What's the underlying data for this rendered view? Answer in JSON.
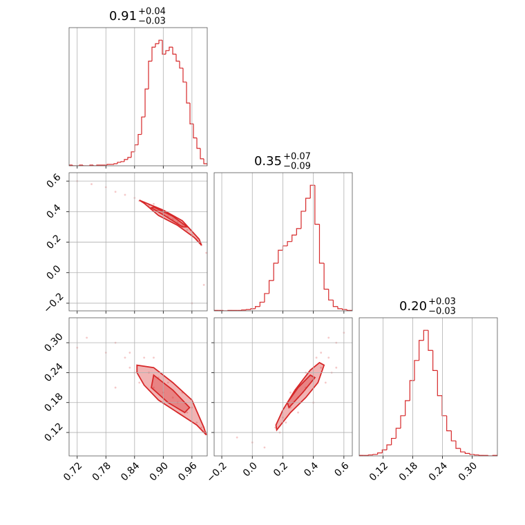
{
  "chart_data": [
    {
      "type": "histogram",
      "row": 0,
      "col": 0,
      "color": "#d62728",
      "title": "0.91",
      "title_upper": "+0.04",
      "title_lower": "−0.03",
      "xlim": [
        0.703,
        0.992
      ],
      "ylim": [
        0,
        198
      ],
      "xticks": [
        0.72,
        0.78,
        0.84,
        0.9,
        0.96
      ],
      "bins": [
        0.703,
        0.7102,
        0.7175,
        0.7247,
        0.7319,
        0.7391,
        0.7464,
        0.7536,
        0.7608,
        0.768,
        0.7753,
        0.7825,
        0.7897,
        0.7969,
        0.8042,
        0.8114,
        0.8186,
        0.8258,
        0.8331,
        0.8403,
        0.8475,
        0.8547,
        0.862,
        0.8692,
        0.8764,
        0.8836,
        0.8909,
        0.8981,
        0.9053,
        0.9125,
        0.9198,
        0.927,
        0.9342,
        0.9414,
        0.9487,
        0.9559,
        0.9631,
        0.9703,
        0.9776,
        0.9848,
        0.992
      ],
      "values": [
        1,
        0,
        0,
        1,
        0,
        0,
        1,
        0,
        1,
        1,
        1,
        2,
        2,
        3,
        5,
        6,
        9,
        12,
        20,
        30,
        45,
        70,
        110,
        150,
        170,
        175,
        180,
        160,
        165,
        170,
        160,
        150,
        140,
        120,
        90,
        60,
        40,
        25,
        10,
        3
      ]
    },
    {
      "type": "scatter",
      "row": 1,
      "col": 0,
      "color": "#d62728",
      "xlim": [
        0.703,
        0.992
      ],
      "ylim": [
        -0.25,
        0.655
      ],
      "xticks": [
        0.72,
        0.78,
        0.84,
        0.9,
        0.96
      ],
      "yticks": [
        {
          "value": -0.2,
          "label": "−0.2"
        },
        {
          "value": 0,
          "label": "0.0"
        },
        0.2,
        0.4,
        0.6
      ],
      "x": [
        0.72,
        0.75,
        0.78,
        0.8,
        0.82,
        0.84,
        0.85,
        0.86,
        0.87,
        0.88,
        0.89,
        0.9,
        0.91,
        0.92,
        0.93,
        0.94,
        0.95,
        0.96,
        0.97,
        0.98,
        0.99,
        0.985,
        0.96,
        0.88,
        0.92
      ],
      "y": [
        0.6,
        0.58,
        0.56,
        0.53,
        0.51,
        0.49,
        0.47,
        0.46,
        0.44,
        0.43,
        0.41,
        0.39,
        0.37,
        0.35,
        0.33,
        0.31,
        0.28,
        0.25,
        0.22,
        0.18,
        0.13,
        -0.08,
        -0.2,
        0.45,
        0.37
      ],
      "contours": [
        {
          "x": [
            0.85,
            0.9,
            0.94,
            0.975,
            0.98,
            0.965,
            0.93,
            0.89,
            0.86
          ],
          "y": [
            0.475,
            0.41,
            0.34,
            0.22,
            0.18,
            0.23,
            0.31,
            0.375,
            0.455
          ]
        },
        {
          "x": [
            0.88,
            0.92,
            0.95,
            0.94,
            0.905,
            0.875
          ],
          "y": [
            0.43,
            0.37,
            0.3,
            0.3,
            0.37,
            0.425
          ]
        }
      ]
    },
    {
      "type": "histogram",
      "row": 1,
      "col": 1,
      "color": "#d62728",
      "title": "0.35",
      "title_upper": "+0.07",
      "title_lower": "−0.09",
      "xlim": [
        -0.25,
        0.655
      ],
      "ylim": [
        0,
        319
      ],
      "xticks": [
        -0.2,
        0,
        0.2,
        0.4,
        0.6
      ],
      "bins": [
        -0.25,
        -0.22,
        -0.19,
        -0.16,
        -0.13,
        -0.1,
        -0.07,
        -0.04,
        -0.01,
        0.02,
        0.05,
        0.08,
        0.11,
        0.14,
        0.17,
        0.2,
        0.23,
        0.26,
        0.29,
        0.32,
        0.35,
        0.38,
        0.41,
        0.44,
        0.47,
        0.5,
        0.53,
        0.56,
        0.59,
        0.62,
        0.65
      ],
      "values": [
        1,
        1,
        0,
        1,
        1,
        1,
        2,
        3,
        5,
        10,
        20,
        40,
        70,
        110,
        140,
        150,
        160,
        175,
        190,
        230,
        260,
        290,
        200,
        110,
        50,
        25,
        10,
        5,
        3,
        1
      ]
    },
    {
      "type": "scatter",
      "row": 2,
      "col": 0,
      "color": "#d62728",
      "xlim": [
        0.703,
        0.992
      ],
      "ylim": [
        0.073,
        0.35
      ],
      "xticks": [
        0.72,
        0.78,
        0.84,
        {
          "value": 0.9,
          "label": "0.90"
        },
        0.96
      ],
      "yticks": [
        0.12,
        0.18,
        0.24,
        {
          "value": 0.3,
          "label": "0.30"
        }
      ],
      "x": [
        0.72,
        0.74,
        0.78,
        0.8,
        0.82,
        0.83,
        0.84,
        0.85,
        0.86,
        0.87,
        0.88,
        0.89,
        0.9,
        0.91,
        0.92,
        0.93,
        0.94,
        0.95,
        0.96,
        0.97,
        0.98,
        0.99,
        0.8,
        0.83,
        0.88
      ],
      "y": [
        0.29,
        0.31,
        0.28,
        0.3,
        0.27,
        0.25,
        0.24,
        0.22,
        0.27,
        0.24,
        0.21,
        0.23,
        0.2,
        0.22,
        0.19,
        0.18,
        0.2,
        0.16,
        0.17,
        0.14,
        0.13,
        0.12,
        0.21,
        0.28,
        0.27
      ],
      "contours": [
        {
          "x": [
            0.845,
            0.88,
            0.92,
            0.96,
            0.985,
            0.99,
            0.97,
            0.93,
            0.89,
            0.86,
            0.845
          ],
          "y": [
            0.255,
            0.25,
            0.22,
            0.185,
            0.13,
            0.115,
            0.135,
            0.16,
            0.185,
            0.215,
            0.24
          ]
        },
        {
          "x": [
            0.88,
            0.92,
            0.955,
            0.945,
            0.91,
            0.875
          ],
          "y": [
            0.235,
            0.205,
            0.17,
            0.16,
            0.18,
            0.21
          ]
        }
      ]
    },
    {
      "type": "scatter",
      "row": 2,
      "col": 1,
      "color": "#d62728",
      "xlim": [
        -0.25,
        0.655
      ],
      "ylim": [
        0.073,
        0.35
      ],
      "xticks": [
        {
          "value": -0.2,
          "label": "−0.2"
        },
        {
          "value": 0,
          "label": "0.0"
        },
        0.2,
        0.4,
        0.6
      ],
      "yticks": [
        0.12,
        0.18,
        0.24,
        0.3
      ],
      "x": [
        -0.1,
        0,
        0.08,
        0.15,
        0.2,
        0.25,
        0.3,
        0.35,
        0.4,
        0.45,
        0.5,
        0.55,
        0.5,
        0.45,
        0.55,
        0.3,
        0.25,
        0.4,
        0.48,
        0.6,
        0.35,
        0.22,
        0.42,
        0.52,
        0.18
      ],
      "y": [
        0.11,
        0.1,
        0.09,
        0.13,
        0.15,
        0.17,
        0.19,
        0.21,
        0.23,
        0.25,
        0.27,
        0.3,
        0.31,
        0.28,
        0.25,
        0.16,
        0.2,
        0.18,
        0.22,
        0.32,
        0.24,
        0.14,
        0.27,
        0.24,
        0.12
      ],
      "contours": [
        {
          "x": [
            0.16,
            0.25,
            0.35,
            0.43,
            0.47,
            0.44,
            0.38,
            0.28,
            0.2,
            0.155
          ],
          "y": [
            0.125,
            0.16,
            0.19,
            0.22,
            0.255,
            0.26,
            0.245,
            0.205,
            0.165,
            0.135
          ]
        },
        {
          "x": [
            0.24,
            0.33,
            0.41,
            0.38,
            0.3,
            0.23
          ],
          "y": [
            0.17,
            0.2,
            0.23,
            0.235,
            0.21,
            0.18
          ]
        }
      ]
    },
    {
      "type": "histogram",
      "row": 2,
      "col": 2,
      "color": "#d62728",
      "title": "0.20",
      "title_upper": "+0.03",
      "title_lower": "−0.03",
      "xlim": [
        0.072,
        0.351
      ],
      "ylim": [
        0,
        275
      ],
      "xticks": [
        0.12,
        0.18,
        0.24,
        {
          "value": 0.3,
          "label": "0.30"
        }
      ],
      "bins": [
        0.072,
        0.0813,
        0.0906,
        0.0999,
        0.1092,
        0.1185,
        0.1278,
        0.1371,
        0.1464,
        0.1557,
        0.165,
        0.1743,
        0.1836,
        0.1929,
        0.2022,
        0.2115,
        0.2208,
        0.2301,
        0.2394,
        0.2487,
        0.258,
        0.2673,
        0.2766,
        0.2859,
        0.2952,
        0.3045,
        0.3138,
        0.3231,
        0.3324,
        0.3417,
        0.351
      ],
      "values": [
        1,
        1,
        2,
        3,
        6,
        12,
        22,
        35,
        55,
        80,
        110,
        150,
        190,
        230,
        250,
        210,
        170,
        120,
        80,
        50,
        30,
        15,
        8,
        5,
        3,
        2,
        1,
        1,
        0,
        1
      ]
    }
  ]
}
